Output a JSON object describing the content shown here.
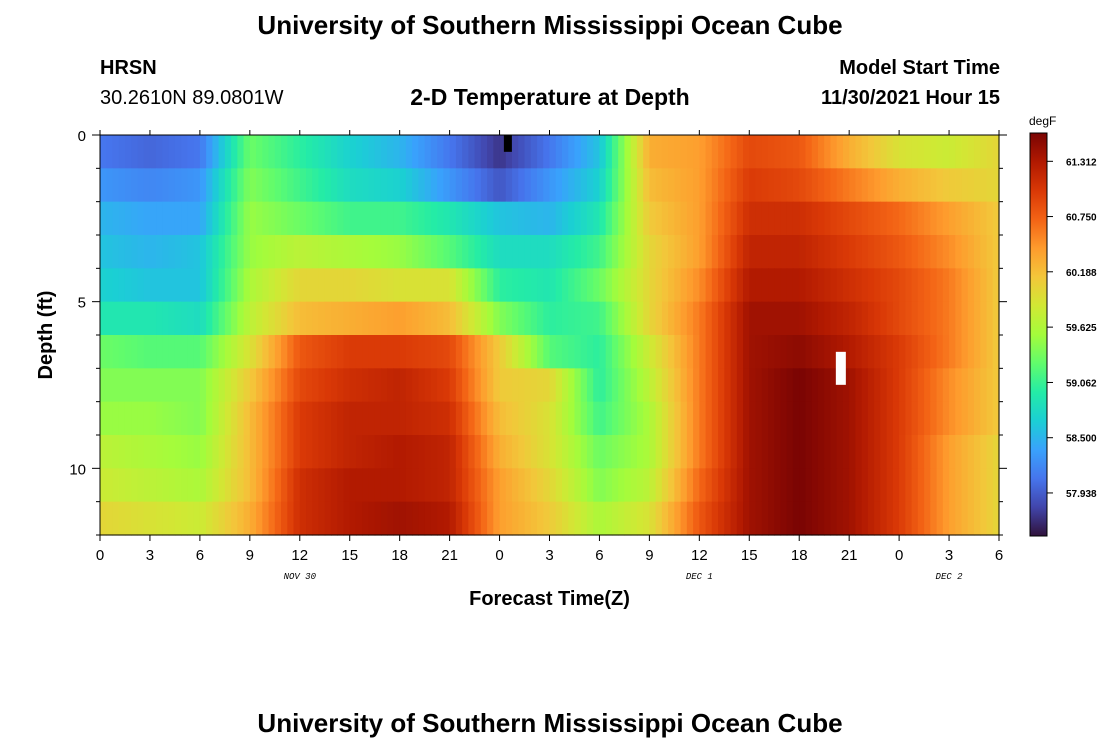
{
  "header": {
    "title": "University of Southern Mississippi Ocean Cube",
    "footer_title": "University of Southern Mississippi Ocean Cube",
    "station": "HRSN",
    "coords": "30.2610N  89.0801W",
    "subtitle": "2-D Temperature at Depth",
    "model_label": "Model Start Time",
    "model_time": "11/30/2021 Hour 15"
  },
  "colors": {
    "scale": [
      "#30123b",
      "#4145ab",
      "#4675ed",
      "#39a2fc",
      "#1bcfd4",
      "#24eca6",
      "#61fc6c",
      "#a4fc3b",
      "#d1e834",
      "#f3c63a",
      "#fe9b2d",
      "#f36315",
      "#d93806",
      "#b11901",
      "#7a0403"
    ],
    "marker": "#ffffff",
    "marker_dark": "#000000"
  },
  "chart_data": {
    "type": "heatmap",
    "title": "2-D Temperature at Depth",
    "xlabel": "Forecast Time(Z)",
    "ylabel": "Depth (ft)",
    "x_ticks": [
      "0",
      "3",
      "6",
      "9",
      "12",
      "15",
      "18",
      "21",
      "0",
      "3",
      "6",
      "9",
      "12",
      "15",
      "18",
      "21",
      "0",
      "3",
      "6"
    ],
    "x_range_hours": [
      0,
      54
    ],
    "date_labels": [
      {
        "text": "NOV 30",
        "hour": 12
      },
      {
        "text": "DEC 1",
        "hour": 36
      },
      {
        "text": "DEC 2",
        "hour": 51
      }
    ],
    "y_ticks": [
      0,
      5,
      10
    ],
    "y_range_ft": [
      0,
      12
    ],
    "colorbar": {
      "unit": "degF",
      "min": 57.5,
      "max": 61.6,
      "tick_values": [
        61.312,
        60.75,
        60.188,
        59.625,
        59.062,
        58.5,
        57.938
      ],
      "tick_labels": [
        "61.312",
        "60.750",
        "60.188",
        "59.625",
        "59.062",
        "58.500",
        "57.938"
      ]
    },
    "depth_layers_ft": [
      0.5,
      1.5,
      2.5,
      3.5,
      4.5,
      5.5,
      6.5,
      7.5,
      8.5,
      9.5,
      10.5,
      11.5
    ],
    "hours": [
      0,
      3,
      6,
      9,
      12,
      15,
      18,
      21,
      24,
      27,
      30,
      33,
      36,
      39,
      42,
      45,
      48,
      51,
      54
    ],
    "values": [
      [
        58.1,
        58.0,
        58.1,
        59.3,
        59.0,
        58.7,
        58.5,
        58.1,
        57.7,
        58.1,
        58.6,
        60.3,
        60.4,
        60.9,
        60.8,
        60.3,
        59.9,
        59.8,
        60.0
      ],
      [
        58.3,
        58.2,
        58.3,
        59.4,
        59.1,
        58.8,
        58.7,
        58.3,
        57.9,
        58.3,
        58.7,
        60.2,
        60.4,
        61.0,
        60.9,
        60.6,
        60.3,
        60.1,
        60.0
      ],
      [
        58.5,
        58.4,
        58.4,
        59.5,
        59.3,
        59.1,
        59.1,
        58.9,
        58.6,
        58.5,
        58.9,
        60.1,
        60.4,
        61.1,
        61.1,
        60.9,
        60.7,
        60.4,
        60.1
      ],
      [
        58.6,
        58.5,
        58.6,
        59.5,
        59.7,
        59.6,
        59.5,
        59.2,
        58.8,
        58.8,
        59.1,
        60.0,
        60.4,
        61.2,
        61.2,
        61.0,
        60.8,
        60.5,
        60.1
      ],
      [
        58.7,
        58.6,
        58.6,
        59.6,
        60.0,
        60.0,
        59.9,
        59.9,
        59.0,
        58.9,
        59.3,
        60.0,
        60.5,
        61.3,
        61.3,
        61.1,
        60.9,
        60.6,
        60.1
      ],
      [
        58.9,
        58.9,
        58.8,
        59.7,
        60.2,
        60.3,
        60.4,
        60.2,
        59.4,
        59.0,
        59.1,
        60.0,
        60.6,
        61.4,
        61.4,
        61.2,
        60.9,
        60.6,
        60.1
      ],
      [
        59.3,
        59.2,
        59.2,
        59.9,
        60.8,
        61.0,
        61.0,
        60.9,
        60.1,
        59.2,
        59.0,
        59.8,
        60.6,
        61.4,
        61.5,
        61.3,
        61.0,
        60.6,
        60.1
      ],
      [
        59.4,
        59.4,
        59.4,
        60.1,
        60.9,
        61.1,
        61.2,
        61.0,
        60.1,
        60.0,
        59.0,
        59.7,
        60.6,
        61.4,
        61.6,
        61.4,
        61.0,
        60.5,
        60.1
      ],
      [
        59.5,
        59.5,
        59.4,
        60.2,
        61.0,
        61.2,
        61.2,
        61.1,
        60.2,
        59.9,
        59.1,
        59.6,
        60.6,
        61.4,
        61.6,
        61.4,
        61.0,
        60.5,
        60.1
      ],
      [
        59.7,
        59.6,
        59.5,
        60.2,
        61.0,
        61.2,
        61.3,
        61.2,
        60.3,
        59.9,
        59.3,
        59.6,
        60.6,
        61.4,
        61.6,
        61.4,
        61.0,
        60.4,
        60.0
      ],
      [
        59.8,
        59.7,
        59.6,
        60.2,
        61.1,
        61.3,
        61.3,
        61.2,
        60.4,
        60.0,
        59.4,
        59.7,
        60.7,
        61.4,
        61.6,
        61.4,
        61.0,
        60.4,
        60.0
      ],
      [
        60.0,
        59.9,
        59.8,
        60.3,
        61.1,
        61.3,
        61.4,
        61.3,
        60.4,
        60.1,
        59.6,
        59.9,
        60.8,
        61.4,
        61.6,
        61.4,
        61.0,
        60.4,
        60.0
      ]
    ],
    "markers": [
      {
        "hour": 24.5,
        "depth_ft": 0.25,
        "color": "black"
      },
      {
        "hour": 44.5,
        "depth_ft": 7.0,
        "color": "white"
      }
    ]
  }
}
